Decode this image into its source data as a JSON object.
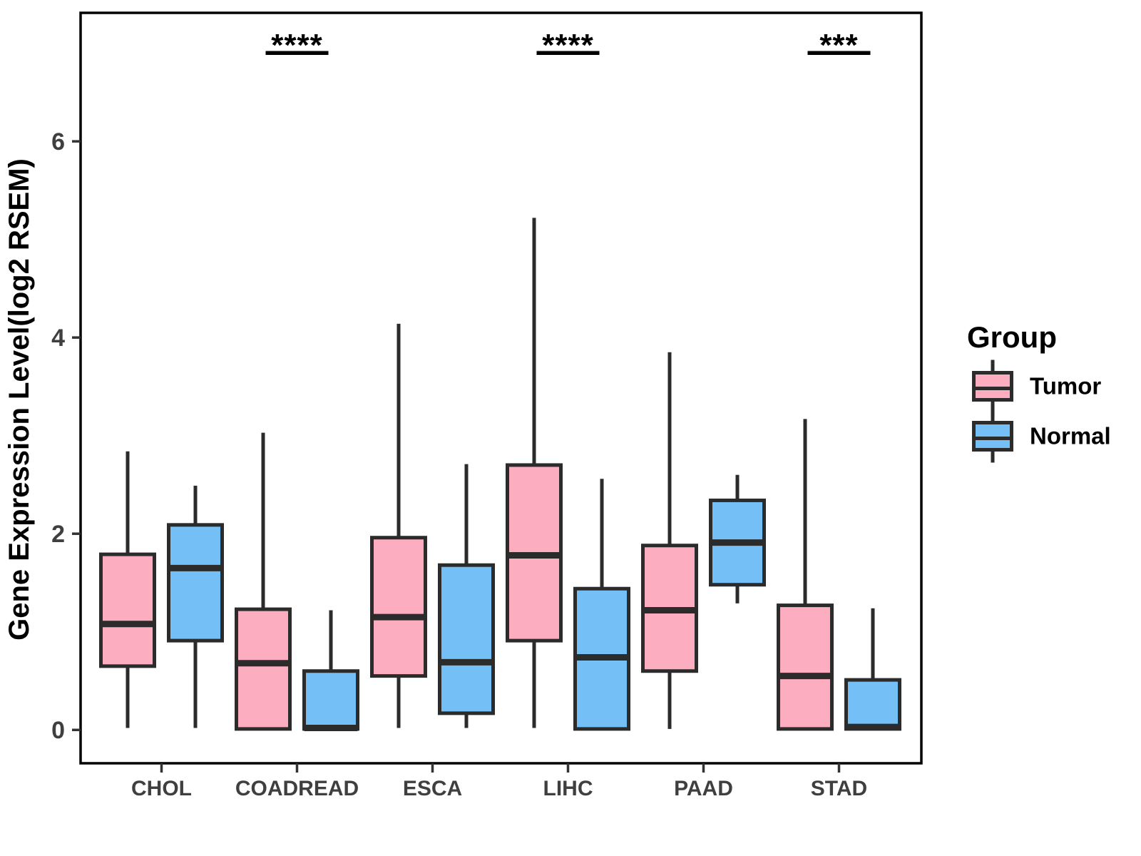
{
  "chart_data": {
    "type": "grouped_boxplot",
    "title": "",
    "xlabel": "",
    "ylabel": "Gene Expression Level(log2 RSEM)",
    "categories": [
      "CHOL",
      "COADREAD",
      "ESCA",
      "LIHC",
      "PAAD",
      "STAD"
    ],
    "yticks": [
      0,
      2,
      4,
      6
    ],
    "ylim": [
      -0.34,
      7.31
    ],
    "grid": "off",
    "legend_position": "right",
    "series": [
      {
        "name": "Tumor",
        "color": "#FCAEC0",
        "boxes": [
          {
            "category": "CHOL",
            "min": 0.02,
            "q1": 0.65,
            "median": 1.08,
            "q3": 1.79,
            "max": 2.84
          },
          {
            "category": "COADREAD",
            "min": 0.01,
            "q1": 0.01,
            "median": 0.68,
            "q3": 1.23,
            "max": 3.03
          },
          {
            "category": "ESCA",
            "min": 0.02,
            "q1": 0.55,
            "median": 1.15,
            "q3": 1.96,
            "max": 4.14
          },
          {
            "category": "LIHC",
            "min": 0.02,
            "q1": 0.91,
            "median": 1.78,
            "q3": 2.7,
            "max": 5.22
          },
          {
            "category": "PAAD",
            "min": 0.01,
            "q1": 0.6,
            "median": 1.22,
            "q3": 1.88,
            "max": 3.85
          },
          {
            "category": "STAD",
            "min": 0.01,
            "q1": 0.01,
            "median": 0.55,
            "q3": 1.27,
            "max": 3.17
          }
        ]
      },
      {
        "name": "Normal",
        "color": "#74BFF6",
        "boxes": [
          {
            "category": "CHOL",
            "min": 0.02,
            "q1": 0.91,
            "median": 1.65,
            "q3": 2.09,
            "max": 2.49
          },
          {
            "category": "COADREAD",
            "min": 0.01,
            "q1": 0.01,
            "median": 0.02,
            "q3": 0.6,
            "max": 1.22
          },
          {
            "category": "ESCA",
            "min": 0.02,
            "q1": 0.17,
            "median": 0.69,
            "q3": 1.68,
            "max": 2.71
          },
          {
            "category": "LIHC",
            "min": 0.01,
            "q1": 0.01,
            "median": 0.74,
            "q3": 1.44,
            "max": 2.56
          },
          {
            "category": "PAAD",
            "min": 1.29,
            "q1": 1.48,
            "median": 1.91,
            "q3": 2.34,
            "max": 2.6
          },
          {
            "category": "STAD",
            "min": 0.01,
            "q1": 0.01,
            "median": 0.03,
            "q3": 0.51,
            "max": 1.24
          }
        ]
      }
    ],
    "significance": [
      {
        "category": "COADREAD",
        "label": "****"
      },
      {
        "category": "LIHC",
        "label": "****"
      },
      {
        "category": "STAD",
        "label": "***"
      }
    ],
    "legend": {
      "title": "Group",
      "entries": [
        {
          "label": "Tumor",
          "color": "#FCAEC0"
        },
        {
          "label": "Normal",
          "color": "#74BFF6"
        }
      ]
    },
    "style": {
      "box_border": "#2B2B2B",
      "panel_border": "#000000",
      "axis_tick_text": "#3F3F3F",
      "axis_title_text": "#000000",
      "significance_color": "#000000",
      "background": "#FFFFFF"
    }
  }
}
